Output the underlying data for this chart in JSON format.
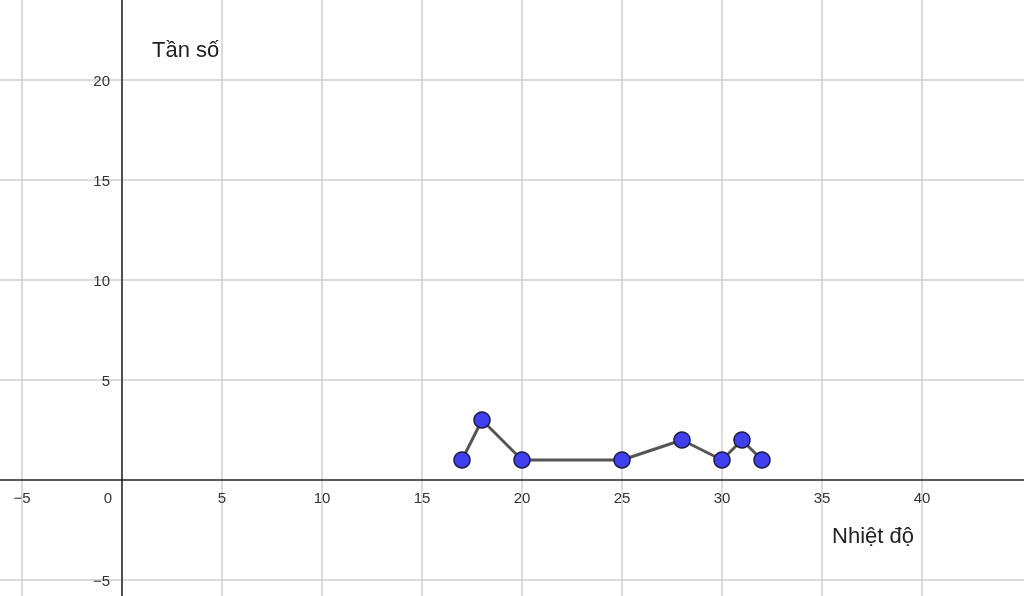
{
  "chart_data": {
    "type": "line",
    "xlabel": "Nhiệt độ",
    "ylabel": "Tần số",
    "series": [
      {
        "color": "#4040ee",
        "x": [
          17,
          18,
          20,
          25,
          28,
          30,
          31,
          32
        ],
        "values": [
          1,
          3,
          1,
          1,
          2,
          1,
          2,
          1
        ]
      }
    ],
    "xlim": [
      -6.1,
      45.1
    ],
    "ylim": [
      -5.8,
      24
    ],
    "xticks": [
      -5,
      0,
      5,
      10,
      15,
      20,
      25,
      30,
      35,
      40
    ],
    "yticks": [
      -5,
      5,
      10,
      15,
      20
    ],
    "grid": true,
    "marker": "circle",
    "line_style": "solid"
  }
}
